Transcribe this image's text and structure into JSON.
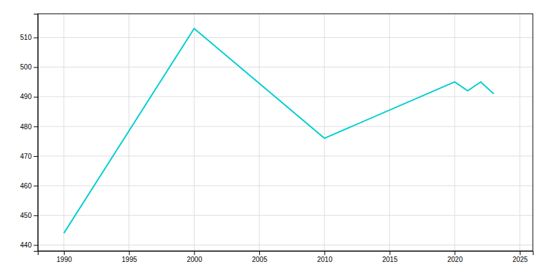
{
  "chart_data": {
    "type": "line",
    "x": [
      1990,
      2000,
      2010,
      2020,
      2021,
      2022,
      2023
    ],
    "values": [
      444,
      513,
      476,
      495,
      492,
      495,
      491
    ],
    "color": "#00CED1",
    "xlim": [
      1988,
      2026
    ],
    "ylim": [
      438,
      518
    ],
    "xticks": [
      1990,
      1995,
      2000,
      2005,
      2010,
      2015,
      2020,
      2025
    ],
    "yticks": [
      440,
      450,
      460,
      470,
      480,
      490,
      500,
      510
    ],
    "grid": true
  }
}
